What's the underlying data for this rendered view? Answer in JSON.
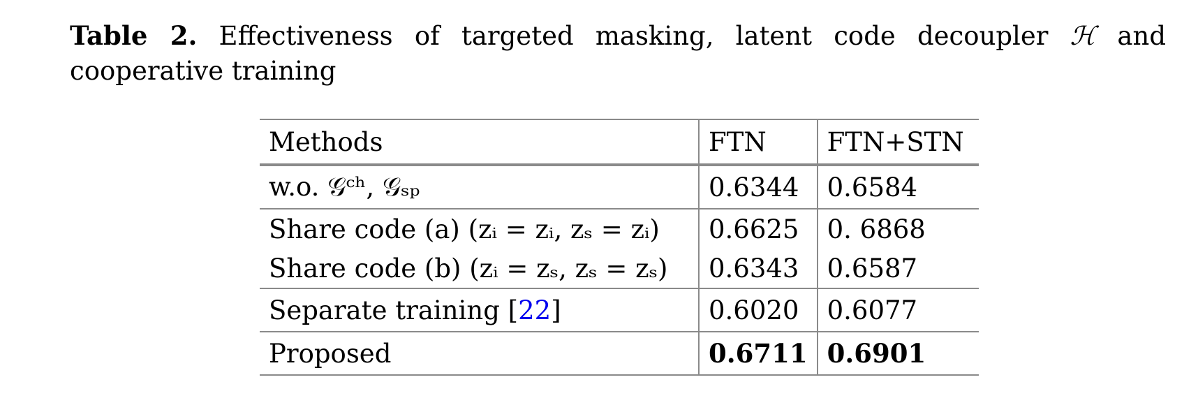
{
  "caption": {
    "label": "Table 2.",
    "text_before_math": " Effectiveness of targeted masking, latent code decoupler ",
    "math_symbol": "ℋ",
    "text_after_math": " and cooperative training"
  },
  "table": {
    "headers": [
      "Methods",
      "FTN",
      "FTN+STN"
    ],
    "rows": [
      {
        "method": "w.o. 𝒢ᶜʰ, 𝒢ₛₚ",
        "ftn": "0.6344",
        "ftn_stn": "0.6584"
      },
      {
        "method": "Share code (a) (zᵢ = zᵢ, zₛ = zᵢ)",
        "ftn": "0.6625",
        "ftn_stn": "0. 6868"
      },
      {
        "method": "Share code (b) (zᵢ = zₛ, zₛ = zₛ)",
        "ftn": "0.6343",
        "ftn_stn": "0.6587"
      },
      {
        "method_prefix": "Separate training [",
        "citation": "22",
        "method_suffix": "]",
        "ftn": "0.6020",
        "ftn_stn": "0.6077"
      },
      {
        "method": "Proposed",
        "ftn": "0.6711",
        "ftn_stn": "0.6901"
      }
    ]
  }
}
